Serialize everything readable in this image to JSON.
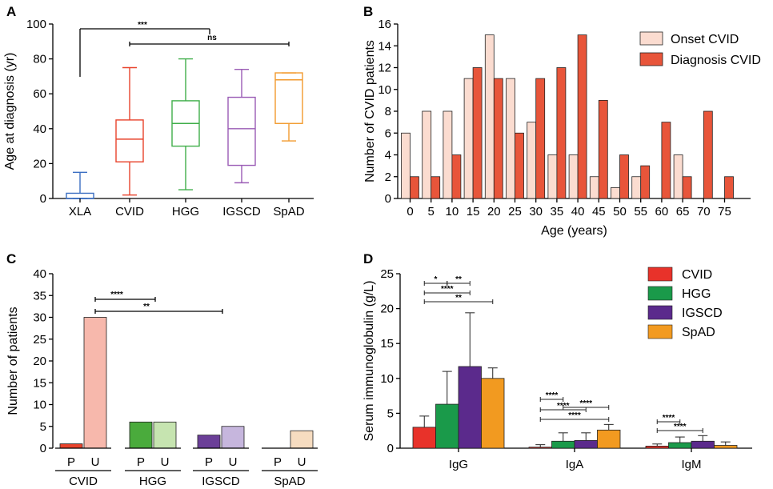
{
  "chart_data": [
    {
      "panel": "A",
      "type": "boxplot",
      "ylabel": "Age at diagnosis (yr)",
      "ylim": [
        0,
        100
      ],
      "yticks": [
        0,
        20,
        40,
        60,
        80,
        100
      ],
      "categories": [
        "XLA",
        "CVID",
        "HGG",
        "IGSCD",
        "SpAD"
      ],
      "boxes": [
        {
          "min": 0,
          "q1": 0,
          "median": 0,
          "q3": 3,
          "max": 15
        },
        {
          "min": 2,
          "q1": 21,
          "median": 34,
          "q3": 45,
          "max": 75
        },
        {
          "min": 5,
          "q1": 30,
          "median": 43,
          "q3": 56,
          "max": 80
        },
        {
          "min": 9,
          "q1": 19,
          "median": 40,
          "q3": 58,
          "max": 74
        },
        {
          "min": 33,
          "q1": 43,
          "median": 68,
          "q3": 72,
          "max": 72
        }
      ],
      "colors": [
        "#3b6fc2",
        "#e8432c",
        "#3fae49",
        "#9a5bb5",
        "#f29a2e"
      ],
      "significance": [
        {
          "from": "XLA",
          "to": "CVID",
          "label": "***"
        },
        {
          "from": "CVID",
          "to": "SpAD",
          "label": "ns"
        }
      ]
    },
    {
      "panel": "B",
      "type": "bar",
      "xlabel": "Age (years)",
      "ylabel": "Number of CVID patients",
      "ylim": [
        0,
        16
      ],
      "yticks": [
        0,
        2,
        4,
        6,
        8,
        10,
        12,
        14,
        16
      ],
      "categories": [
        "0",
        "5",
        "10",
        "15",
        "20",
        "25",
        "30",
        "35",
        "40",
        "45",
        "50",
        "55",
        "60",
        "65",
        "70",
        "75"
      ],
      "series": [
        {
          "name": "Onset CVID",
          "color": "#fbdcd0",
          "values": [
            6,
            8,
            8,
            11,
            15,
            11,
            7,
            4,
            4,
            2,
            1,
            2,
            0,
            4,
            0,
            0
          ]
        },
        {
          "name": "Diagnosis CVID",
          "color": "#e8553a",
          "values": [
            2,
            2,
            4,
            12,
            11,
            6,
            11,
            12,
            15,
            9,
            4,
            3,
            7,
            2,
            8,
            2
          ]
        }
      ]
    },
    {
      "panel": "C",
      "type": "bar",
      "ylabel": "Number of patients",
      "ylim": [
        0,
        40
      ],
      "yticks": [
        0,
        5,
        10,
        15,
        20,
        25,
        30,
        35,
        40
      ],
      "groups": [
        "CVID",
        "HGG",
        "IGSCD",
        "SpAD"
      ],
      "sublabels": [
        "P",
        "U"
      ],
      "P": [
        1,
        6,
        3,
        0
      ],
      "U": [
        30,
        6,
        5,
        4
      ],
      "colorsP": [
        "#e8432c",
        "#4aab3c",
        "#6b3f98",
        "#f0a040"
      ],
      "colorsU": [
        "#f7b8ac",
        "#c6e4b0",
        "#c6b6dd",
        "#f6dcc0"
      ],
      "significance": [
        {
          "from": "CVID U",
          "to": "HGG",
          "label": "****"
        },
        {
          "from": "CVID U",
          "to": "IGSCD",
          "label": "**"
        }
      ]
    },
    {
      "panel": "D",
      "type": "bar",
      "ylabel": "Serum immunoglobulin (g/L)",
      "ylim": [
        0,
        25
      ],
      "yticks": [
        0,
        5,
        10,
        15,
        20,
        25
      ],
      "categories": [
        "IgG",
        "IgA",
        "IgM"
      ],
      "series": [
        {
          "name": "CVID",
          "color": "#e8322a",
          "values": [
            3.0,
            0.15,
            0.3
          ],
          "errors": [
            1.6,
            0.35,
            0.3
          ]
        },
        {
          "name": "HGG",
          "color": "#1a9a4a",
          "values": [
            6.3,
            1.0,
            0.8
          ],
          "errors": [
            4.7,
            1.2,
            0.8
          ]
        },
        {
          "name": "IGSCD",
          "color": "#5b2a8c",
          "values": [
            11.7,
            1.1,
            1.0
          ],
          "errors": [
            7.7,
            1.1,
            0.8
          ]
        },
        {
          "name": "SpAD",
          "color": "#f29a20",
          "values": [
            10.0,
            2.6,
            0.4
          ],
          "errors": [
            1.5,
            0.8,
            0.5
          ]
        }
      ],
      "significance": [
        {
          "group": "IgG",
          "from": "CVID",
          "to": "HGG",
          "label": "*"
        },
        {
          "group": "IgG",
          "from": "HGG",
          "to": "IGSCD",
          "label": "**"
        },
        {
          "group": "IgG",
          "from": "CVID",
          "to": "IGSCD",
          "label": "****"
        },
        {
          "group": "IgG",
          "from": "CVID",
          "to": "SpAD",
          "label": "**"
        },
        {
          "group": "IgA",
          "from": "CVID",
          "to": "HGG",
          "label": "****"
        },
        {
          "group": "IgA",
          "from": "HGG",
          "to": "SpAD",
          "label": "****"
        },
        {
          "group": "IgA",
          "from": "CVID",
          "to": "IGSCD",
          "label": "****"
        },
        {
          "group": "IgA",
          "from": "CVID",
          "to": "SpAD",
          "label": "****"
        },
        {
          "group": "IgM",
          "from": "CVID",
          "to": "HGG",
          "label": "****"
        },
        {
          "group": "IgM",
          "from": "CVID",
          "to": "IGSCD",
          "label": "****"
        }
      ]
    }
  ]
}
